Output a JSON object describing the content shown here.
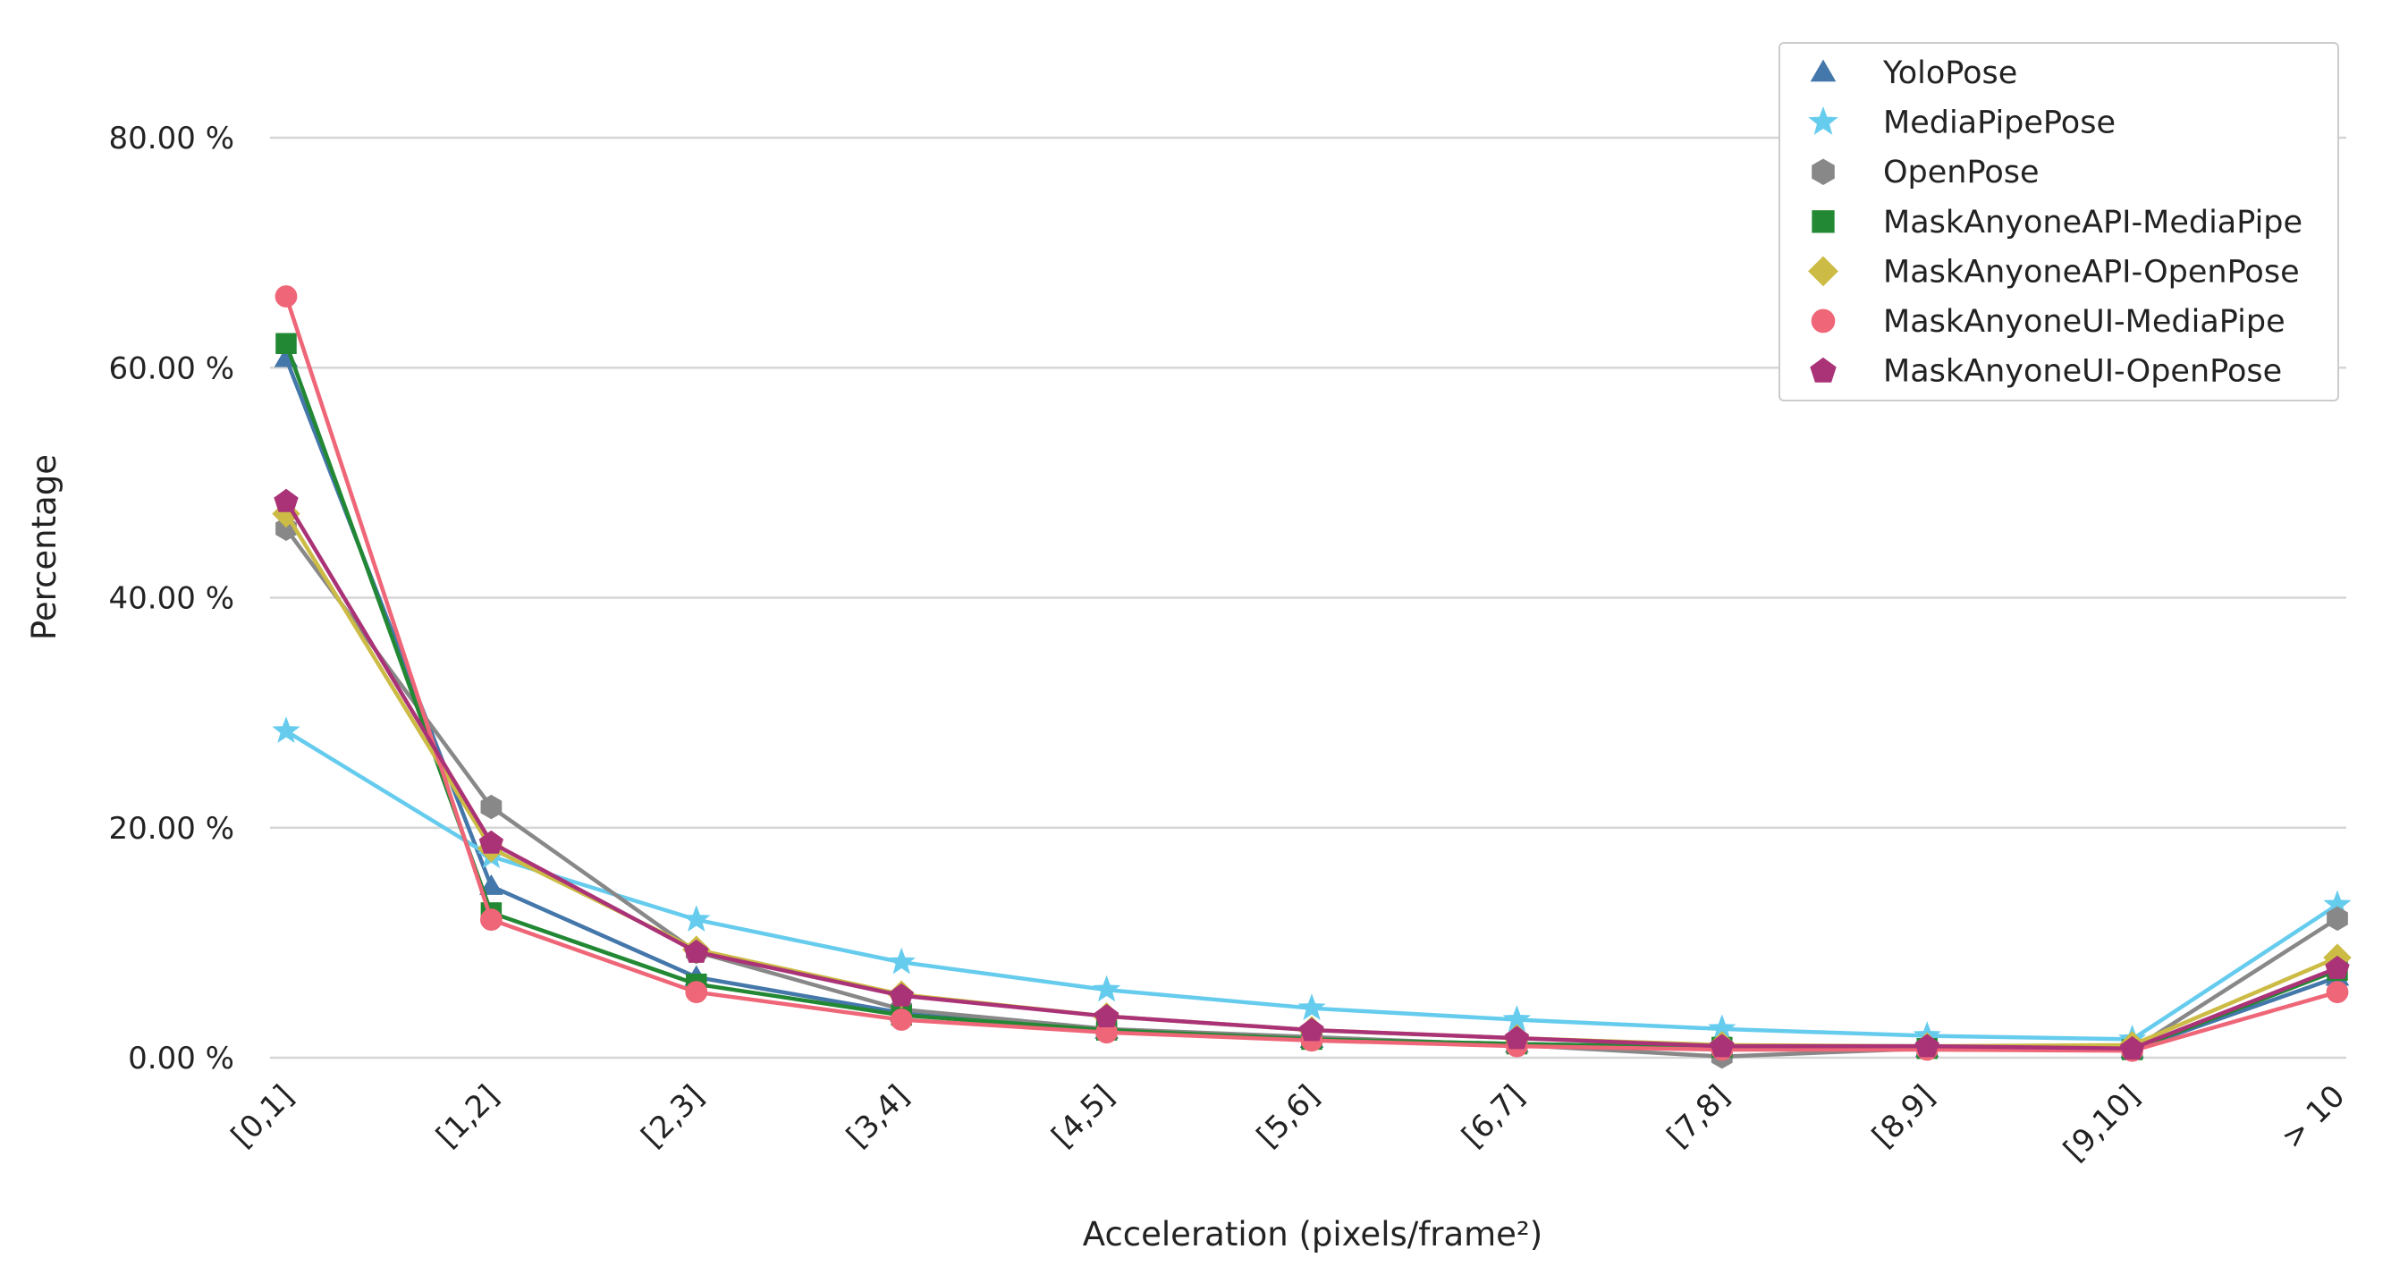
{
  "chart_data": {
    "type": "line",
    "title": "",
    "xlabel": "Acceleration (pixels/frame²)",
    "ylabel": "Percentage",
    "categories": [
      "[0,1]",
      "[1,2]",
      "[2,3]",
      "[3,4]",
      "[4,5]",
      "[5,6]",
      "[6,7]",
      "[7,8]",
      "[8,9]",
      "[9,10]",
      "> 10"
    ],
    "yticks": [
      {
        "value": 0,
        "label": "0.00 %"
      },
      {
        "value": 20,
        "label": "20.00 %"
      },
      {
        "value": 40,
        "label": "40.00 %"
      },
      {
        "value": 60,
        "label": "60.00 %"
      },
      {
        "value": 80,
        "label": "80.00 %"
      }
    ],
    "ylim": [
      0,
      85
    ],
    "grid": "horizontal",
    "legend_position": "top-right",
    "series": [
      {
        "name": "YoloPose",
        "marker": "triangle",
        "color": "#4477AA",
        "values": [
          60.8,
          14.9,
          7.0,
          3.9,
          2.4,
          1.6,
          1.2,
          0.9,
          0.8,
          0.7,
          7.0
        ]
      },
      {
        "name": "MediaPipePose",
        "marker": "star",
        "color": "#66CCEE",
        "values": [
          28.4,
          17.5,
          12.0,
          8.3,
          5.9,
          4.3,
          3.3,
          2.5,
          1.9,
          1.6,
          13.3
        ]
      },
      {
        "name": "OpenPose",
        "marker": "hexagon",
        "color": "#888888",
        "values": [
          46.0,
          21.8,
          9.2,
          4.2,
          2.5,
          1.8,
          1.1,
          0.1,
          0.8,
          0.7,
          12.1
        ]
      },
      {
        "name": "MaskAnyoneAPI-MediaPipe",
        "marker": "square",
        "color": "#228833",
        "values": [
          62.1,
          12.6,
          6.4,
          3.7,
          2.4,
          1.6,
          1.2,
          0.9,
          0.8,
          0.7,
          7.6
        ]
      },
      {
        "name": "MaskAnyoneAPI-OpenPose",
        "marker": "diamond",
        "color": "#CCBB44",
        "values": [
          47.3,
          18.2,
          9.4,
          5.5,
          3.6,
          2.4,
          1.7,
          1.1,
          1.0,
          1.1,
          8.7
        ]
      },
      {
        "name": "MaskAnyoneUI-MediaPipe",
        "marker": "circle",
        "color": "#EE6677",
        "values": [
          66.2,
          12.0,
          5.7,
          3.3,
          2.2,
          1.5,
          1.0,
          0.7,
          0.7,
          0.6,
          5.7
        ]
      },
      {
        "name": "MaskAnyoneUI-OpenPose",
        "marker": "pentagon",
        "color": "#AA3377",
        "values": [
          48.4,
          18.7,
          9.2,
          5.4,
          3.6,
          2.4,
          1.7,
          1.0,
          1.0,
          0.8,
          7.8
        ]
      }
    ]
  }
}
